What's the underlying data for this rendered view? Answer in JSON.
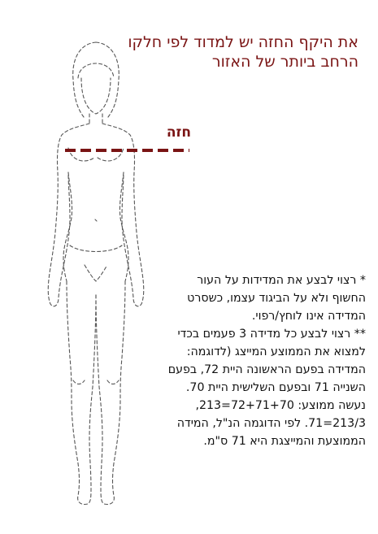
{
  "headline": "את היקף החזה יש למדוד לפי חלקו הרחב ביותר של האזור",
  "chest_label": "חזה",
  "notes": [
    "* רצוי לבצע את המדידות על העור החשוף ולא על הביגוד עצמו, כשסרט המדידה אינו לוחץ/רפוי.",
    "** רצוי לבצע כל מדידה 3 פעמים בכדי למצוא את הממוצע המייצג (לדוגמה: המדידה בפעם הראשונה היית 72, בפעם השנייה 71 ובפעם השלישית היית 70. נעשה ממוצע: 72+71+70=213, 213/3=71. לפי הדוגמה הנ\"ל, המידה הממוצעת והמייצגת היא 71 ס\"מ."
  ],
  "colors": {
    "accent": "#7a1414",
    "outline": "#555555",
    "text": "#111111"
  }
}
